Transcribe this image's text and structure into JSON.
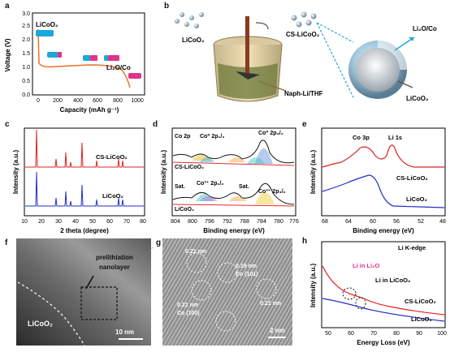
{
  "panels": {
    "a": {
      "label": "a",
      "xlabel": "Capacity (mAh g⁻¹)",
      "ylabel": "Voltage (V)",
      "xticks": [
        "0",
        "200",
        "400",
        "600",
        "800",
        "1000"
      ],
      "yticks": [
        "0.0",
        "0.5",
        "1.0",
        "1.5",
        "2.0",
        "2.5",
        "3.0"
      ],
      "curve_color": "#e8702a",
      "tag_start": "LiCoO₂",
      "tag_end": "Li₂O/Co",
      "colors": {
        "licoo2": "#1aa7d9",
        "li2o": "#e0338a"
      }
    },
    "b": {
      "label": "b",
      "reactant": "LiCoO₂",
      "product": "CS-LiCoO₂",
      "solution": "Naph-Li/THF",
      "shell_label": "Li₂O/Co",
      "core_label": "LiCoO₂"
    },
    "c": {
      "label": "c",
      "xlabel": "2 theta (degree)",
      "ylabel": "Intensity (a.u.)",
      "xticks": [
        "10",
        "20",
        "30",
        "40",
        "50",
        "60",
        "70",
        "80"
      ],
      "series": [
        {
          "name": "CS-LiCoO₂",
          "color": "#e02020"
        },
        {
          "name": "LiCoO₂",
          "color": "#2030c8"
        }
      ]
    },
    "d": {
      "label": "d",
      "xlabel": "Binding energy (eV)",
      "ylabel": "Intensity (a.u.)",
      "xticks": [
        "804",
        "800",
        "796",
        "792",
        "788",
        "784",
        "780",
        "776"
      ],
      "xticks_visible": [
        "804",
        "800",
        "796",
        "792",
        "788",
        "784",
        "780"
      ],
      "title_line": "Co 2p",
      "annotations": {
        "co0_2p12": "Co⁰ 2p₁/₂",
        "co0_2p32": "Co⁰ 2p₃/₂",
        "co3_2p12": "Co³⁺ 2p₁/₂",
        "co3_2p32": "Co³⁺ 2p₃/₂",
        "sat1": "Sat.",
        "sat2": "Sat."
      },
      "series": [
        {
          "name": "CS-LiCoO₂"
        },
        {
          "name": "LiCoO₂"
        }
      ]
    },
    "e": {
      "label": "e",
      "xlabel": "Binding energy (eV)",
      "ylabel": "Intensity (a.u.)",
      "xticks": [
        "68",
        "64",
        "60",
        "56",
        "52",
        "48"
      ],
      "peak1": "Co 3p",
      "peak2": "Li 1s",
      "series": [
        {
          "name": "CS-LiCoO₂",
          "color": "#e02020"
        },
        {
          "name": "LiCoO₂",
          "color": "#2030c8"
        }
      ]
    },
    "f": {
      "label": "f",
      "prelithiation": "prelithiation",
      "nanolayer": "nanolayer",
      "region": "LiCoO₂",
      "scale": "10 nm"
    },
    "g": {
      "label": "g",
      "d1": "0.21 nm",
      "d2": "0.19 nm",
      "d2b": "Co (101)",
      "d3": "0.21 nm",
      "d3b": "Co (100)",
      "d4": "0.21 nm",
      "scale": "2 nm"
    },
    "h": {
      "label": "h",
      "title": "Li K-edge",
      "xlabel": "Energy Loss (eV)",
      "ylabel": "Intensity (a.u.)",
      "xticks": [
        "50",
        "60",
        "70",
        "80",
        "90",
        "100"
      ],
      "ann1": "Li in Li₂O",
      "ann2": "Li in LiCoO₂",
      "series": [
        {
          "name": "CS-LiCoO₂",
          "color": "#e02020"
        },
        {
          "name": "LiCoO₂",
          "color": "#2030c8"
        }
      ]
    }
  }
}
